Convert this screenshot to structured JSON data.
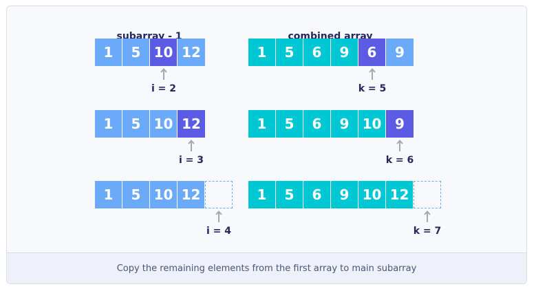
{
  "headings": {
    "left": "subarray - 1",
    "right": "combined array"
  },
  "rows": [
    {
      "left_cells": [
        {
          "text": "1",
          "style": "blue"
        },
        {
          "text": "5",
          "style": "blue"
        },
        {
          "text": "10",
          "style": "purple"
        },
        {
          "text": "12",
          "style": "blue"
        }
      ],
      "right_cells": [
        {
          "text": "1",
          "style": "teal"
        },
        {
          "text": "5",
          "style": "teal"
        },
        {
          "text": "6",
          "style": "teal"
        },
        {
          "text": "9",
          "style": "teal"
        },
        {
          "text": "6",
          "style": "purple"
        },
        {
          "text": "9",
          "style": "blue"
        }
      ],
      "left_pointer": "i = 2",
      "right_pointer": "k = 5"
    },
    {
      "left_cells": [
        {
          "text": "1",
          "style": "blue"
        },
        {
          "text": "5",
          "style": "blue"
        },
        {
          "text": "10",
          "style": "blue"
        },
        {
          "text": "12",
          "style": "purple"
        }
      ],
      "right_cells": [
        {
          "text": "1",
          "style": "teal"
        },
        {
          "text": "5",
          "style": "teal"
        },
        {
          "text": "6",
          "style": "teal"
        },
        {
          "text": "9",
          "style": "teal"
        },
        {
          "text": "10",
          "style": "teal"
        },
        {
          "text": "9",
          "style": "purple"
        }
      ],
      "left_pointer": "i = 3",
      "right_pointer": "k = 6"
    },
    {
      "left_cells": [
        {
          "text": "1",
          "style": "blue"
        },
        {
          "text": "5",
          "style": "blue"
        },
        {
          "text": "10",
          "style": "blue"
        },
        {
          "text": "12",
          "style": "blue"
        },
        {
          "text": "",
          "style": "empty"
        }
      ],
      "right_cells": [
        {
          "text": "1",
          "style": "teal"
        },
        {
          "text": "5",
          "style": "teal"
        },
        {
          "text": "6",
          "style": "teal"
        },
        {
          "text": "9",
          "style": "teal"
        },
        {
          "text": "10",
          "style": "teal"
        },
        {
          "text": "12",
          "style": "teal"
        },
        {
          "text": "",
          "style": "empty"
        }
      ],
      "left_pointer": "i = 4",
      "right_pointer": "k = 7"
    }
  ],
  "caption": "Copy the remaining elements from the first array to main subarray",
  "colors": {
    "blue": "#6aaaf8",
    "teal": "#00c7d4",
    "purple": "#5c5be3",
    "text_dark": "#25265e",
    "arrow": "#a3a8b5"
  }
}
